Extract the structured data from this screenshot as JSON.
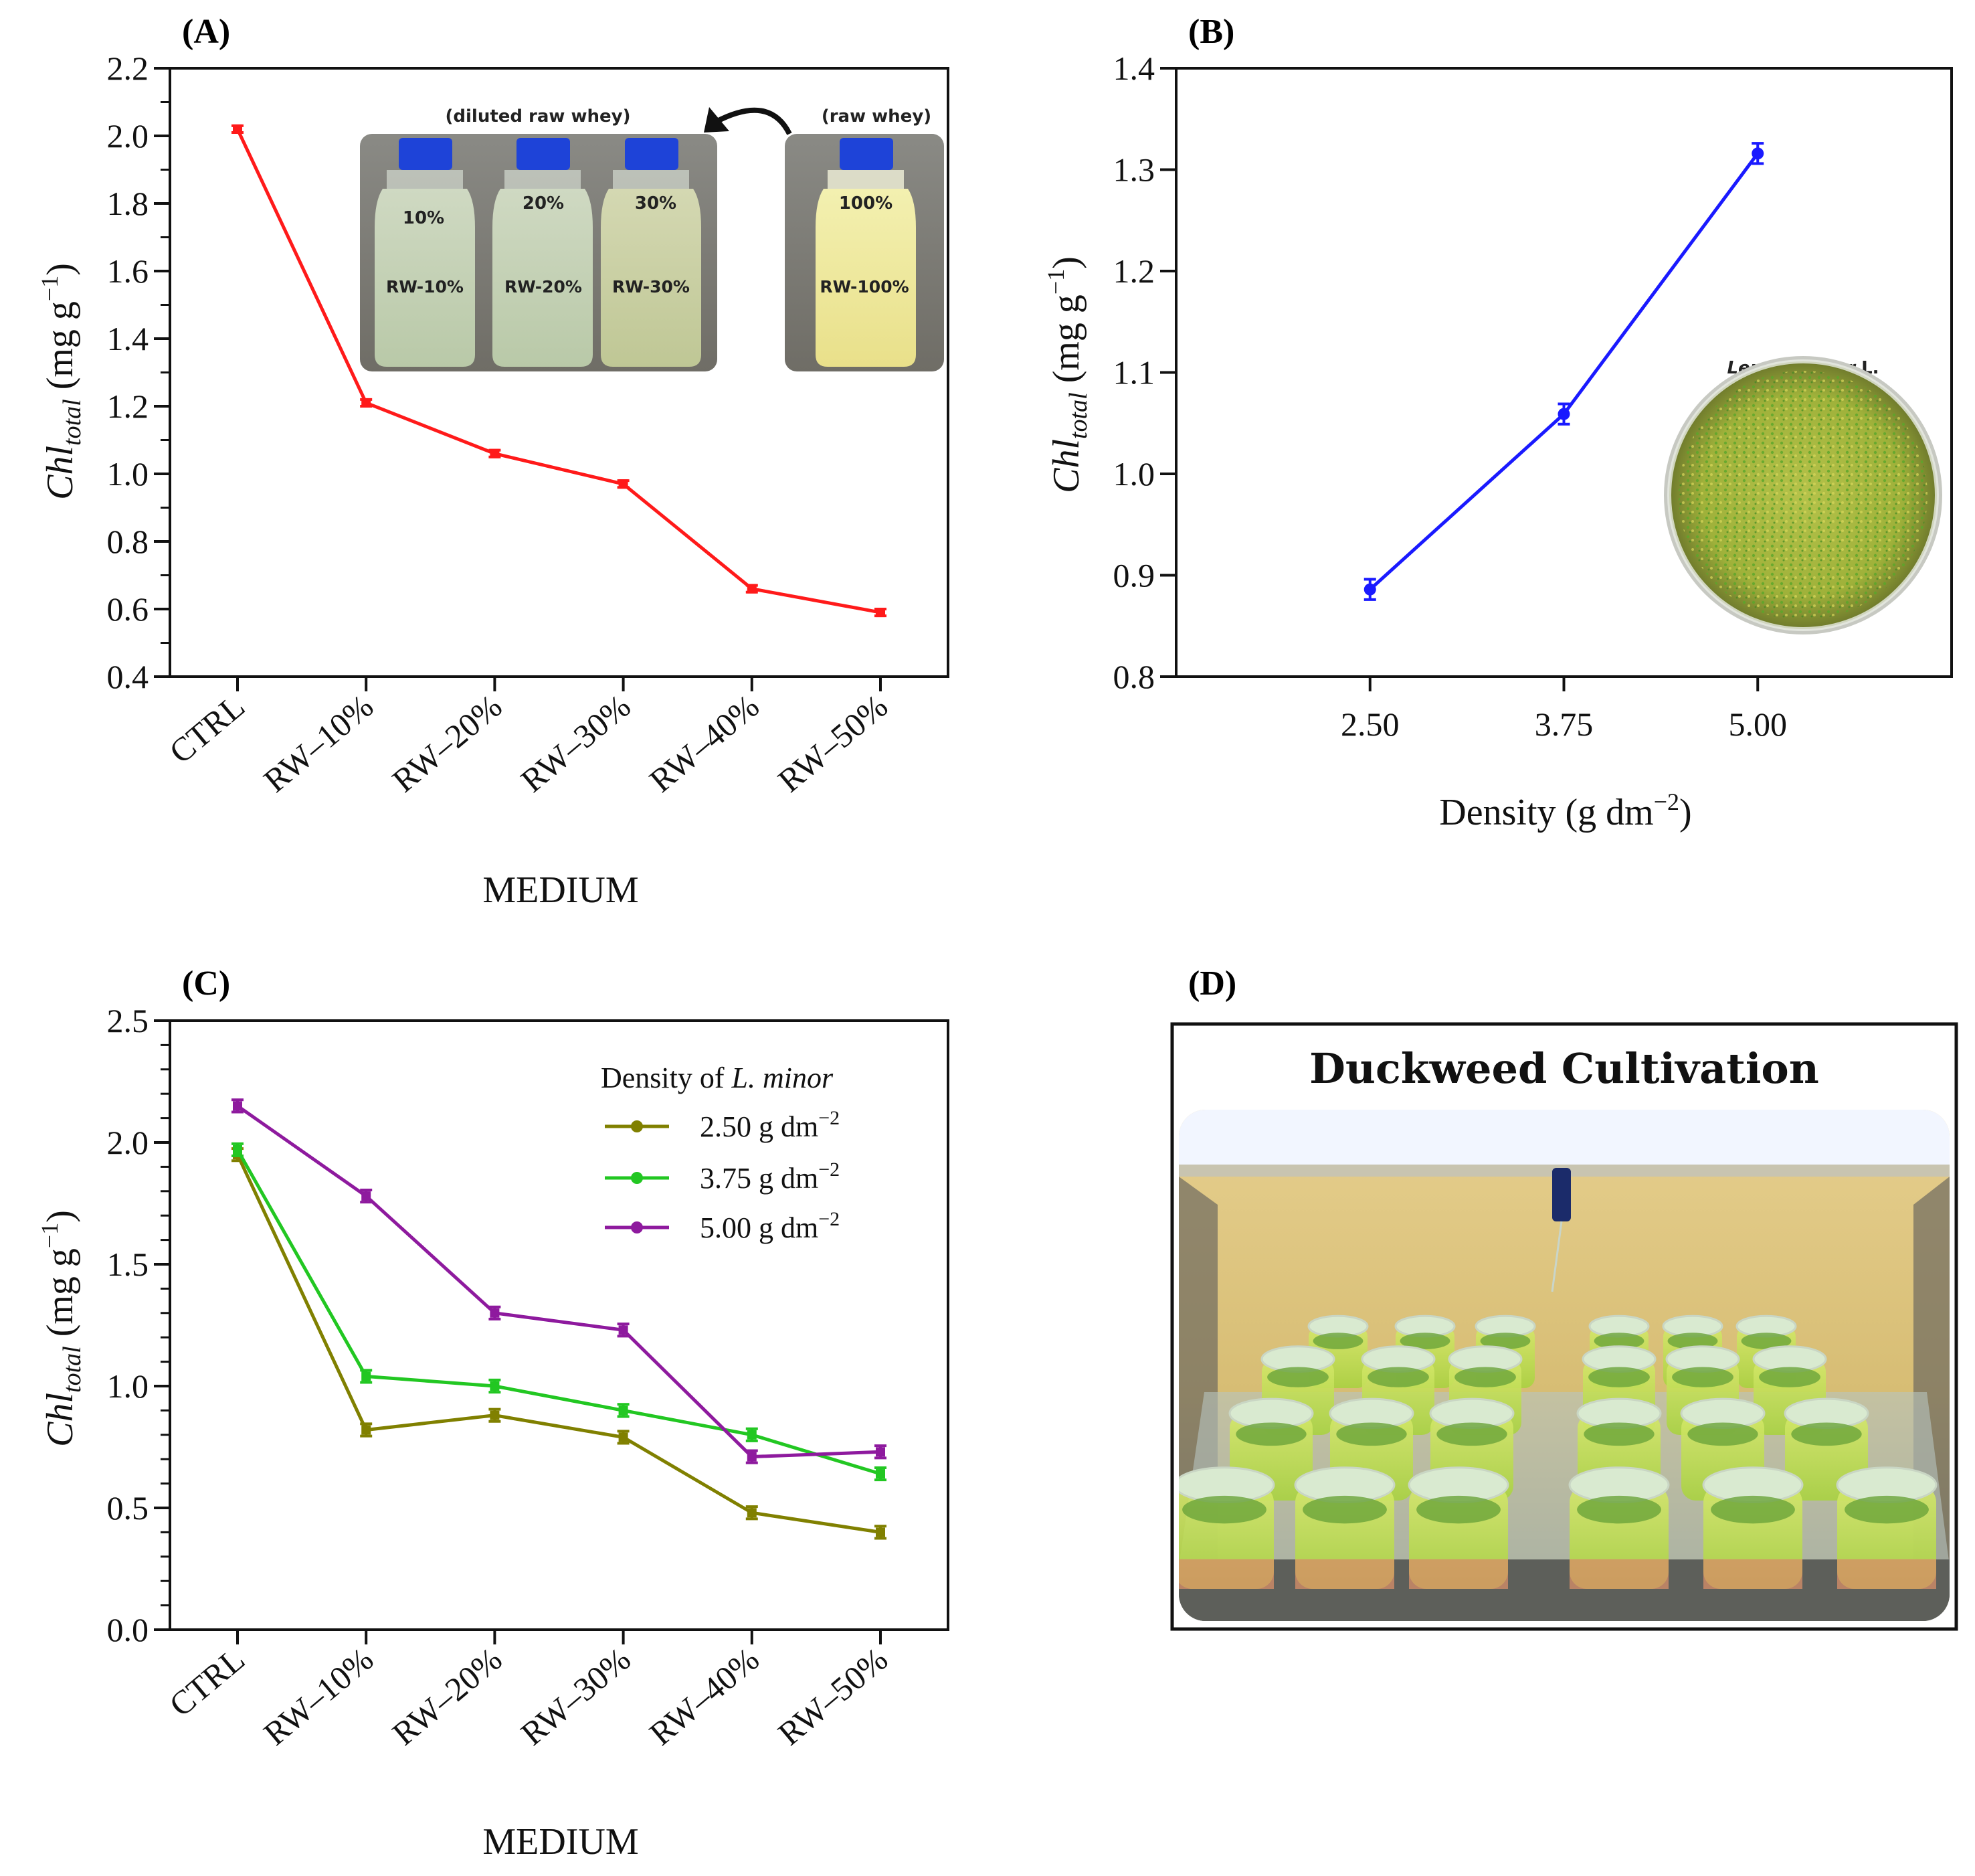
{
  "colors": {
    "panelA_line": "#ff1a1a",
    "panelB_line": "#1a1aff",
    "series_250": "#808000",
    "series_375": "#22c722",
    "series_500": "#8e1a9e"
  },
  "photos": {
    "diluted_caption": "(diluted raw whey)",
    "raw_caption": "(raw whey)",
    "bottles": [
      "RW-10%",
      "RW-20%",
      "RW-30%",
      "RW-100%"
    ],
    "bottle_marks": [
      "10%",
      "20%",
      "30%",
      "100%"
    ],
    "lemna_caption_italic": "Lemna minor",
    "lemna_caption_rest": " L.",
    "duckweed_title": "Duckweed Cultivation"
  },
  "chart_data": [
    {
      "panel": "(A)",
      "type": "line",
      "categories": [
        "CTRL",
        "RW–10%",
        "RW–20%",
        "RW–30%",
        "RW–40%",
        "RW–50%"
      ],
      "values": [
        2.02,
        1.21,
        1.06,
        0.97,
        0.66,
        0.59
      ],
      "errors": [
        0.01,
        0.01,
        0.01,
        0.01,
        0.01,
        0.01
      ],
      "ylim": [
        0.4,
        2.2
      ],
      "yticks": [
        "0.4",
        "0.6",
        "0.8",
        "1.0",
        "1.2",
        "1.4",
        "1.6",
        "1.8",
        "2.0",
        "2.2"
      ],
      "xlabel": "MEDIUM",
      "ylabel_main": "Chl",
      "ylabel_sub": "total",
      "ylabel_unit": " (mg g",
      "ylabel_exp": "−1",
      "ylabel_close": ")"
    },
    {
      "panel": "(B)",
      "type": "line",
      "x": [
        2.5,
        3.75,
        5.0
      ],
      "xticks": [
        "2.50",
        "3.75",
        "5.00"
      ],
      "values": [
        0.886,
        1.059,
        1.316
      ],
      "errors": [
        0.01,
        0.01,
        0.01
      ],
      "ylim": [
        0.8,
        1.4
      ],
      "yticks": [
        "0.8",
        "0.9",
        "1.0",
        "1.1",
        "1.2",
        "1.3",
        "1.4"
      ],
      "xlabel_main": "Density (g dm",
      "xlabel_exp": "−2",
      "xlabel_close": ")",
      "ylabel_main": "Chl",
      "ylabel_sub": "total",
      "ylabel_unit": " (mg g",
      "ylabel_exp": "−1",
      "ylabel_close": ")"
    },
    {
      "panel": "(C)",
      "type": "line",
      "categories": [
        "CTRL",
        "RW–10%",
        "RW–20%",
        "RW–30%",
        "RW–40%",
        "RW–50%"
      ],
      "series": [
        {
          "name": "2.50 g dm",
          "exp": "−2",
          "values": [
            1.95,
            0.82,
            0.88,
            0.79,
            0.48,
            0.4
          ]
        },
        {
          "name": "3.75 g dm",
          "exp": "−2",
          "values": [
            1.97,
            1.04,
            1.0,
            0.9,
            0.8,
            0.64
          ]
        },
        {
          "name": "5.00 g dm",
          "exp": "−2",
          "values": [
            2.15,
            1.78,
            1.3,
            1.23,
            0.71,
            0.73
          ]
        }
      ],
      "ylim": [
        0.0,
        2.5
      ],
      "yticks": [
        "0.0",
        "0.5",
        "1.0",
        "1.5",
        "2.0",
        "2.5"
      ],
      "legend_title": "Density of ",
      "legend_title_italic": "L. minor",
      "xlabel": "MEDIUM",
      "ylabel_main": "Chl",
      "ylabel_sub": "total",
      "ylabel_unit": " (mg g",
      "ylabel_exp": "−1",
      "ylabel_close": ")"
    },
    {
      "panel": "(D)",
      "type": "other"
    }
  ]
}
